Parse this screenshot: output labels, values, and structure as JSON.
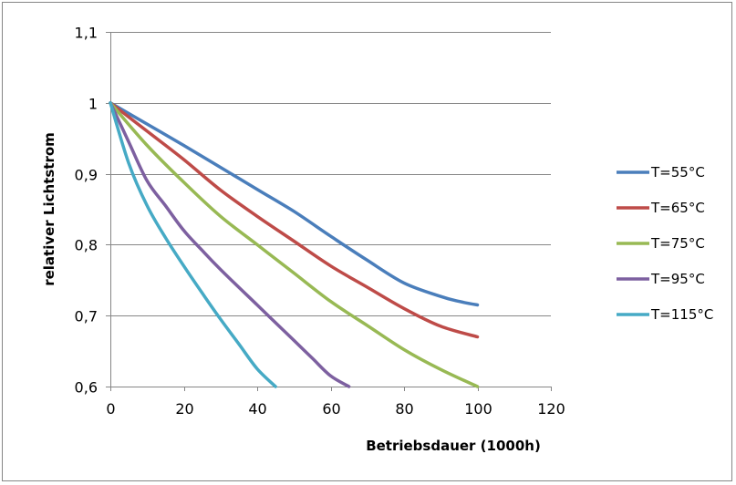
{
  "chart_data": {
    "type": "line",
    "title": "",
    "xlabel": "Betriebsdauer (1000h)",
    "ylabel": "relativer Lichtstrom",
    "xlim": [
      0,
      120
    ],
    "ylim": [
      0.6,
      1.1
    ],
    "x_ticks": [
      0,
      20,
      40,
      60,
      80,
      100,
      120
    ],
    "x_tick_labels": [
      "0",
      "20",
      "40",
      "60",
      "80",
      "100",
      "120"
    ],
    "y_ticks": [
      0.6,
      0.7,
      0.8,
      0.9,
      1.0,
      1.1
    ],
    "y_tick_labels": [
      "0,6",
      "0,7",
      "0,8",
      "0,9",
      "1",
      "1,1"
    ],
    "grid": "horizontal",
    "legend": "right",
    "series": [
      {
        "name": "T=55°C",
        "color": "#4a7ebb",
        "x": [
          0,
          10,
          20,
          30,
          40,
          50,
          60,
          70,
          80,
          90,
          95,
          100
        ],
        "y": [
          1.0,
          0.97,
          0.94,
          0.909,
          0.878,
          0.847,
          0.812,
          0.778,
          0.746,
          0.727,
          0.72,
          0.715
        ]
      },
      {
        "name": "T=65°C",
        "color": "#be4b48",
        "x": [
          0,
          10,
          20,
          30,
          40,
          50,
          60,
          70,
          80,
          90,
          100
        ],
        "y": [
          1.0,
          0.96,
          0.92,
          0.877,
          0.84,
          0.805,
          0.77,
          0.74,
          0.71,
          0.685,
          0.67
        ]
      },
      {
        "name": "T=75°C",
        "color": "#98b954",
        "x": [
          0,
          10,
          20,
          30,
          40,
          50,
          60,
          70,
          80,
          90,
          100
        ],
        "y": [
          1.0,
          0.94,
          0.888,
          0.84,
          0.8,
          0.76,
          0.72,
          0.686,
          0.652,
          0.624,
          0.6
        ]
      },
      {
        "name": "T=95°C",
        "color": "#7d60a0",
        "x": [
          0,
          5,
          10,
          15,
          20,
          25,
          30,
          40,
          50,
          55,
          60,
          65
        ],
        "y": [
          1.0,
          0.945,
          0.89,
          0.855,
          0.82,
          0.792,
          0.765,
          0.715,
          0.665,
          0.64,
          0.615,
          0.6
        ]
      },
      {
        "name": "T=115°C",
        "color": "#46aac5",
        "x": [
          0,
          5,
          10,
          15,
          20,
          25,
          30,
          35,
          40,
          45
        ],
        "y": [
          1.0,
          0.915,
          0.855,
          0.81,
          0.77,
          0.732,
          0.695,
          0.66,
          0.625,
          0.6
        ]
      }
    ]
  }
}
